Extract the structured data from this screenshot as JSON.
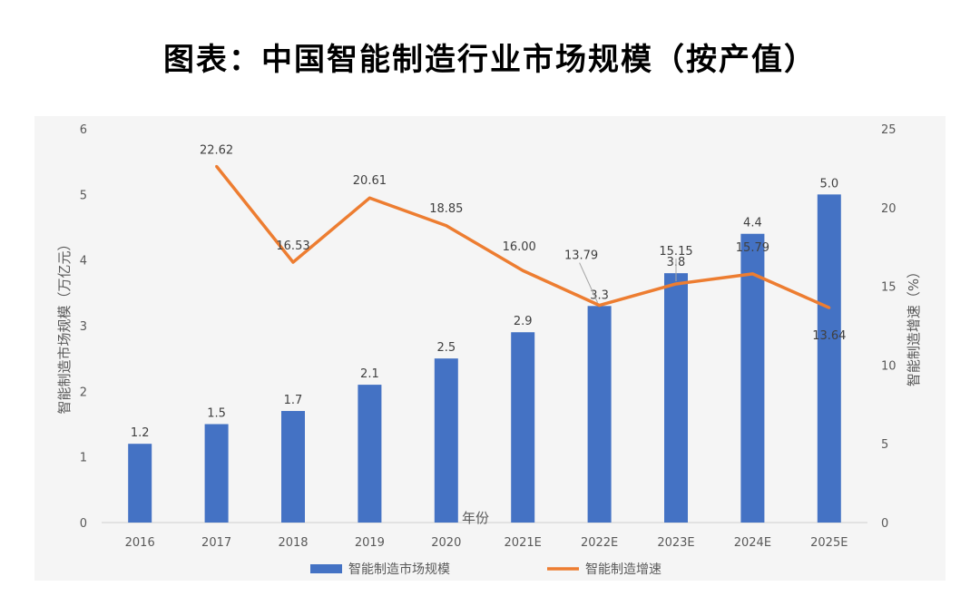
{
  "title": "图表：中国智能制造行业市场规模（按产值）",
  "chart_data": {
    "type": "bar",
    "categories": [
      "2016",
      "2017",
      "2018",
      "2019",
      "2020",
      "2021E",
      "2022E",
      "2023E",
      "2024E",
      "2025E"
    ],
    "series": [
      {
        "name": "智能制造市场规模",
        "type": "bar",
        "axis": "left",
        "color": "#4472c4",
        "values": [
          1.2,
          1.5,
          1.7,
          2.1,
          2.5,
          2.9,
          3.3,
          3.8,
          4.4,
          5.0
        ],
        "labels": [
          "1.2",
          "1.5",
          "1.7",
          "2.1",
          "2.5",
          "2.9",
          "3.3",
          "3.8",
          "4.4",
          "5.0"
        ]
      },
      {
        "name": "智能制造增速",
        "type": "line",
        "axis": "right",
        "color": "#ed7d31",
        "values": [
          null,
          22.62,
          16.53,
          20.61,
          18.85,
          16.0,
          13.79,
          15.15,
          15.79,
          13.64
        ],
        "labels": [
          "",
          "22.62",
          "16.53",
          "20.61",
          "18.85",
          "16.00",
          "13.79",
          "15.15",
          "15.79",
          "13.64"
        ]
      }
    ],
    "xlabel": "年份",
    "ylabel_left": "智能制造市场规模（万亿元）",
    "ylabel_right": "智能制造增速（%）",
    "ylim_left": [
      0,
      6
    ],
    "yticks_left": [
      "0",
      "1",
      "2",
      "3",
      "4",
      "5",
      "6"
    ],
    "ylim_right": [
      0,
      25
    ],
    "yticks_right": [
      "0",
      "5",
      "10",
      "15",
      "20",
      "25"
    ],
    "grid": false,
    "legend": "bottom"
  }
}
